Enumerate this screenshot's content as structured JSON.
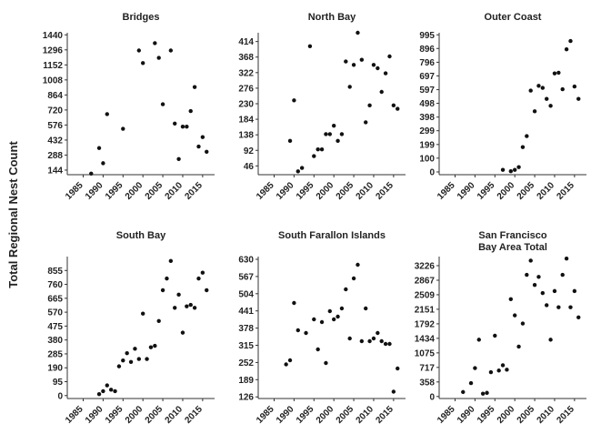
{
  "figure": {
    "ylabel": "Total Regional Nest Count"
  },
  "chart_data": [
    {
      "type": "scatter",
      "title": "Bridges",
      "xlim": [
        1981,
        2018
      ],
      "ylim": [
        100,
        1460
      ],
      "xticks": [
        1985,
        1990,
        1995,
        2000,
        2005,
        2010,
        2015
      ],
      "yticks": [
        144,
        288,
        432,
        576,
        720,
        864,
        1008,
        1152,
        1296,
        1440
      ],
      "x": [
        1987,
        1989,
        1990,
        1991,
        1995,
        1999,
        2000,
        2003,
        2004,
        2005,
        2007,
        2008,
        2009,
        2010,
        2011,
        2012,
        2013,
        2014,
        2015,
        2016
      ],
      "y": [
        110,
        355,
        210,
        680,
        540,
        1290,
        1170,
        1360,
        1220,
        775,
        1290,
        590,
        250,
        560,
        560,
        710,
        940,
        370,
        460,
        320
      ]
    },
    {
      "type": "scatter",
      "title": "North Bay",
      "xlim": [
        1981,
        2018
      ],
      "ylim": [
        20,
        440
      ],
      "xticks": [
        1985,
        1990,
        1995,
        2000,
        2005,
        2010,
        2015
      ],
      "yticks": [
        46,
        92,
        138,
        184,
        230,
        276,
        322,
        368,
        414
      ],
      "x": [
        1989,
        1990,
        1991,
        1992,
        1994,
        1995,
        1996,
        1997,
        1998,
        1999,
        2000,
        2001,
        2002,
        2003,
        2004,
        2005,
        2006,
        2007,
        2008,
        2009,
        2010,
        2011,
        2012,
        2013,
        2014,
        2015,
        2016
      ],
      "y": [
        120,
        240,
        30,
        40,
        400,
        75,
        95,
        95,
        140,
        140,
        165,
        120,
        140,
        355,
        280,
        345,
        440,
        360,
        175,
        225,
        345,
        335,
        265,
        320,
        370,
        225,
        215
      ]
    },
    {
      "type": "scatter",
      "title": "Outer Coast",
      "xlim": [
        1981,
        2018
      ],
      "ylim": [
        -20,
        1010
      ],
      "xticks": [
        1985,
        1990,
        1995,
        2000,
        2005,
        2010,
        2015
      ],
      "yticks": [
        0,
        100,
        199,
        299,
        398,
        498,
        597,
        697,
        796,
        896,
        995
      ],
      "x": [
        1997,
        1999,
        2000,
        2001,
        2002,
        2003,
        2004,
        2005,
        2006,
        2007,
        2008,
        2009,
        2010,
        2011,
        2012,
        2013,
        2014,
        2015,
        2016
      ],
      "y": [
        15,
        5,
        15,
        35,
        180,
        260,
        590,
        440,
        625,
        610,
        530,
        480,
        715,
        720,
        600,
        890,
        950,
        620,
        530
      ]
    },
    {
      "type": "scatter",
      "title": "South Bay",
      "xlim": [
        1981,
        2018
      ],
      "ylim": [
        -20,
        950
      ],
      "xticks": [
        1985,
        1990,
        1995,
        2000,
        2005,
        2010,
        2015
      ],
      "yticks": [
        0,
        95,
        190,
        285,
        380,
        475,
        570,
        665,
        760,
        855
      ],
      "x": [
        1989,
        1990,
        1991,
        1992,
        1993,
        1994,
        1995,
        1996,
        1997,
        1998,
        1999,
        2000,
        2001,
        2002,
        2003,
        2004,
        2005,
        2006,
        2007,
        2008,
        2009,
        2010,
        2011,
        2012,
        2013,
        2014,
        2015,
        2016
      ],
      "y": [
        10,
        30,
        70,
        40,
        30,
        200,
        240,
        290,
        230,
        320,
        250,
        560,
        250,
        330,
        340,
        510,
        720,
        800,
        920,
        600,
        690,
        430,
        610,
        620,
        600,
        800,
        840,
        720
      ]
    },
    {
      "type": "scatter",
      "title": "South Farallon Islands",
      "xlim": [
        1981,
        2018
      ],
      "ylim": [
        120,
        640
      ],
      "xticks": [
        1985,
        1990,
        1995,
        2000,
        2005,
        2010,
        2015
      ],
      "yticks": [
        126,
        189,
        252,
        315,
        378,
        441,
        504,
        567,
        630
      ],
      "x": [
        1988,
        1989,
        1990,
        1991,
        1993,
        1995,
        1996,
        1997,
        1998,
        1999,
        2000,
        2001,
        2002,
        2003,
        2004,
        2005,
        2006,
        2007,
        2008,
        2009,
        2010,
        2011,
        2012,
        2013,
        2014,
        2015,
        2016
      ],
      "y": [
        245,
        260,
        470,
        370,
        360,
        410,
        300,
        400,
        250,
        440,
        410,
        420,
        450,
        520,
        340,
        560,
        610,
        330,
        450,
        330,
        340,
        360,
        330,
        320,
        320,
        145,
        230
      ]
    },
    {
      "type": "scatter",
      "title": "San Francisco\nBay Area Total",
      "xlim": [
        1981,
        2018
      ],
      "ylim": [
        -50,
        3450
      ],
      "xticks": [
        1985,
        1990,
        1995,
        2000,
        2005,
        2010,
        2015
      ],
      "yticks": [
        0,
        358,
        717,
        1075,
        1434,
        1792,
        2151,
        2509,
        2867,
        3226
      ],
      "x": [
        1987,
        1989,
        1990,
        1991,
        1992,
        1993,
        1994,
        1995,
        1996,
        1997,
        1998,
        1999,
        2000,
        2001,
        2002,
        2003,
        2004,
        2005,
        2006,
        2007,
        2008,
        2009,
        2010,
        2011,
        2012,
        2013,
        2014,
        2015,
        2016
      ],
      "y": [
        110,
        330,
        700,
        1400,
        70,
        90,
        600,
        1500,
        640,
        770,
        660,
        2400,
        2000,
        1230,
        1800,
        3000,
        3350,
        2750,
        2950,
        2550,
        2250,
        1400,
        2600,
        2200,
        3000,
        3400,
        2200,
        2600,
        1950
      ]
    }
  ]
}
